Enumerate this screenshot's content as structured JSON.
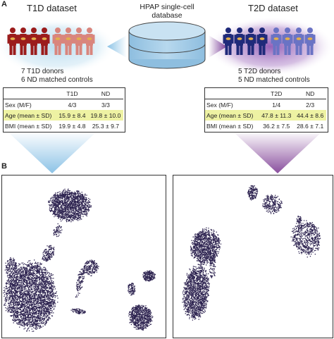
{
  "panel_a": {
    "letter": "A",
    "t1d": {
      "title": "T1D dataset",
      "donors_line": "7 T1D donors",
      "controls_line": "6 ND matched controls",
      "disease_color": "#9b1c1c",
      "control_color": "#d9857d",
      "disease_icon_count": 4,
      "control_icon_count": 4,
      "table": {
        "headers": [
          "",
          "T1D",
          "ND"
        ],
        "rows": [
          {
            "label": "Sex (M/F)",
            "a": "4/3",
            "b": "3/3",
            "highlight": false
          },
          {
            "label": "Age (mean ± SD)",
            "a": "15.9 ± 8.4",
            "b": "19.8 ± 10.0",
            "highlight": true
          },
          {
            "label": "BMI (mean ± SD)",
            "a": "19.9 ± 4.8",
            "b": "25.3 ± 9.7",
            "highlight": false
          }
        ]
      }
    },
    "database": {
      "title_line1": "HPAP single-cell",
      "title_line2": "database",
      "color": "#a9cde8"
    },
    "t2d": {
      "title": "T2D dataset",
      "donors_line": "5 T2D donors",
      "controls_line": "5 ND matched controls",
      "disease_color": "#1f2a7a",
      "control_color": "#6a73c4",
      "disease_icon_count": 4,
      "control_icon_count": 4,
      "table": {
        "headers": [
          "",
          "T2D",
          "ND"
        ],
        "rows": [
          {
            "label": "Sex (M/F)",
            "a": "1/4",
            "b": "2/3",
            "highlight": false
          },
          {
            "label": "Age (mean ± SD)",
            "a": "47.8 ± 11.3",
            "b": "44.4 ± 8.6",
            "highlight": true
          },
          {
            "label": "BMI (mean ± SD)",
            "a": "36.2 ± 7.5",
            "b": "28.6 ± 7.1",
            "highlight": false
          }
        ]
      }
    }
  },
  "panel_b": {
    "letter": "B",
    "point_color": "#2d2350"
  }
}
